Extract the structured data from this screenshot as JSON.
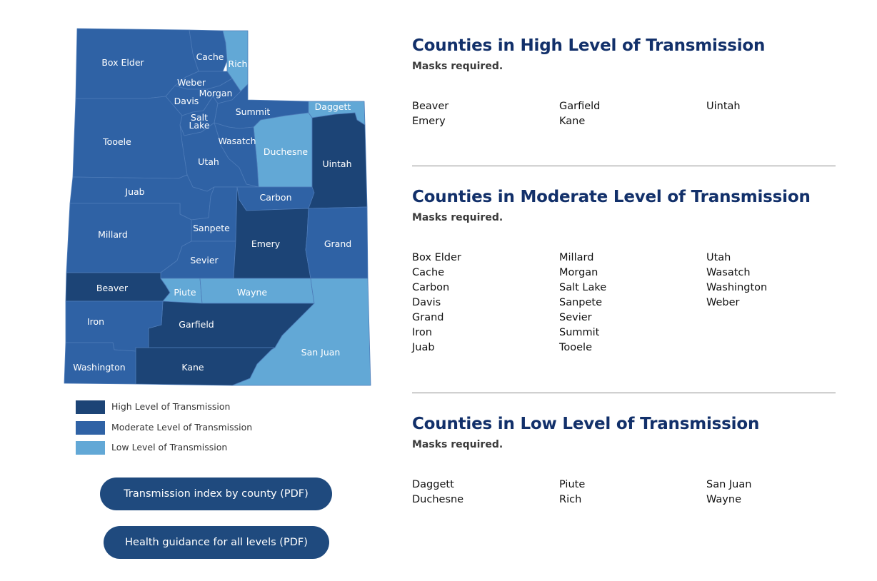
{
  "colors": {
    "high": "#1c4476",
    "moderate": "#2f62a5",
    "low": "#62a8d6",
    "title": "#12306a",
    "button": "#1f4a7e"
  },
  "map": {
    "counties": [
      {
        "name": "Box Elder",
        "level": "moderate"
      },
      {
        "name": "Cache",
        "level": "moderate"
      },
      {
        "name": "Rich",
        "level": "low"
      },
      {
        "name": "Weber",
        "level": "moderate"
      },
      {
        "name": "Morgan",
        "level": "moderate"
      },
      {
        "name": "Davis",
        "level": "moderate"
      },
      {
        "name": "Salt Lake",
        "level": "moderate"
      },
      {
        "name": "Summit",
        "level": "moderate"
      },
      {
        "name": "Daggett",
        "level": "low"
      },
      {
        "name": "Duchesne",
        "level": "low"
      },
      {
        "name": "Uintah",
        "level": "high"
      },
      {
        "name": "Wasatch",
        "level": "moderate"
      },
      {
        "name": "Utah",
        "level": "moderate"
      },
      {
        "name": "Tooele",
        "level": "moderate"
      },
      {
        "name": "Juab",
        "level": "moderate"
      },
      {
        "name": "Sanpete",
        "level": "moderate"
      },
      {
        "name": "Millard",
        "level": "moderate"
      },
      {
        "name": "Sevier",
        "level": "moderate"
      },
      {
        "name": "Carbon",
        "level": "moderate"
      },
      {
        "name": "Emery",
        "level": "high"
      },
      {
        "name": "Grand",
        "level": "moderate"
      },
      {
        "name": "Beaver",
        "level": "high"
      },
      {
        "name": "Piute",
        "level": "low"
      },
      {
        "name": "Wayne",
        "level": "low"
      },
      {
        "name": "San Juan",
        "level": "low"
      },
      {
        "name": "Garfield",
        "level": "high"
      },
      {
        "name": "Kane",
        "level": "high"
      },
      {
        "name": "Iron",
        "level": "moderate"
      },
      {
        "name": "Washington",
        "level": "moderate"
      }
    ]
  },
  "legend": [
    {
      "label": "High Level of Transmission",
      "level": "high"
    },
    {
      "label": "Moderate Level of Transmission",
      "level": "moderate"
    },
    {
      "label": "Low Level of Transmission",
      "level": "low"
    }
  ],
  "buttons": {
    "transmission_index": "Transmission index by county (PDF)",
    "health_guidance": "Health guidance for all levels (PDF)"
  },
  "sections": [
    {
      "title": "Counties in High Level of Transmission",
      "note": "Masks required.",
      "columns": [
        [
          "Beaver",
          "Emery"
        ],
        [
          "Garfield",
          "Kane"
        ],
        [
          "Uintah"
        ]
      ]
    },
    {
      "title": "Counties in Moderate Level of Transmission",
      "note": "Masks required.",
      "columns": [
        [
          "Box Elder",
          "Cache",
          "Carbon",
          "Davis",
          "Grand",
          "Iron",
          "Juab"
        ],
        [
          "Millard",
          "Morgan",
          "Salt Lake",
          "Sanpete",
          "Sevier",
          "Summit",
          "Tooele"
        ],
        [
          "Utah",
          "Wasatch",
          "Washington",
          "Weber"
        ]
      ]
    },
    {
      "title": "Counties in Low Level of Transmission",
      "note": "Masks required.",
      "columns": [
        [
          "Daggett",
          "Duchesne"
        ],
        [
          "Piute",
          "Rich"
        ],
        [
          "San Juan",
          "Wayne"
        ]
      ]
    }
  ]
}
